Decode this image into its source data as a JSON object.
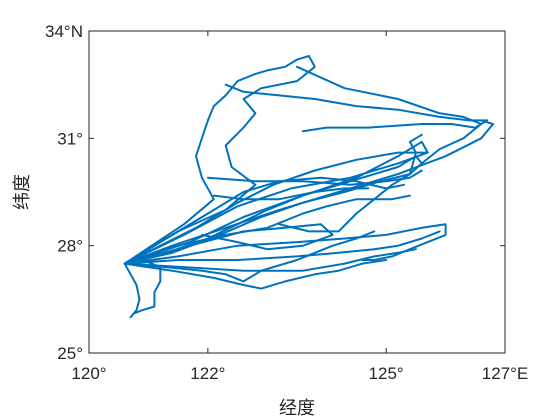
{
  "chart_data": {
    "type": "line",
    "xlabel": "经度",
    "ylabel": "纬度",
    "xlim": [
      120,
      127
    ],
    "ylim": [
      25,
      34
    ],
    "x_ticks": [
      {
        "value": 120,
        "label": "120°"
      },
      {
        "value": 122,
        "label": "122°"
      },
      {
        "value": 125,
        "label": "125°"
      },
      {
        "value": 127,
        "label": "127°E"
      }
    ],
    "y_ticks": [
      {
        "value": 25,
        "label": "25°"
      },
      {
        "value": 28,
        "label": "28°"
      },
      {
        "value": 31,
        "label": "31°"
      },
      {
        "value": 34,
        "label": "34°N"
      }
    ],
    "grid": false,
    "color": "#0072BD",
    "series": [
      {
        "points": [
          [
            120.7,
            26.0
          ],
          [
            120.8,
            26.2
          ],
          [
            120.85,
            26.5
          ],
          [
            120.8,
            26.9
          ],
          [
            120.7,
            27.2
          ],
          [
            120.6,
            27.5
          ],
          [
            120.9,
            27.6
          ],
          [
            121.2,
            27.4
          ],
          [
            121.2,
            27.0
          ],
          [
            121.1,
            26.7
          ],
          [
            121.1,
            26.3
          ],
          [
            120.9,
            26.2
          ],
          [
            120.75,
            26.1
          ]
        ]
      },
      {
        "points": [
          [
            120.6,
            27.5
          ],
          [
            121.3,
            27.8
          ],
          [
            122.0,
            28.2
          ],
          [
            122.5,
            28.6
          ],
          [
            123.0,
            29.0
          ],
          [
            123.6,
            29.4
          ],
          [
            124.2,
            29.7
          ],
          [
            124.8,
            30.0
          ],
          [
            125.2,
            30.2
          ],
          [
            125.5,
            30.5
          ],
          [
            125.6,
            30.3
          ],
          [
            125.4,
            30.0
          ],
          [
            124.9,
            29.8
          ],
          [
            124.3,
            29.5
          ],
          [
            123.6,
            29.2
          ],
          [
            122.9,
            28.8
          ],
          [
            122.2,
            28.3
          ],
          [
            121.4,
            27.8
          ],
          [
            120.6,
            27.5
          ]
        ]
      },
      {
        "points": [
          [
            120.6,
            27.5
          ],
          [
            121.6,
            28.3
          ],
          [
            122.5,
            29.1
          ],
          [
            123.4,
            29.6
          ],
          [
            124.4,
            29.9
          ],
          [
            125.2,
            30.3
          ],
          [
            125.7,
            30.6
          ],
          [
            125.6,
            30.9
          ],
          [
            125.2,
            30.5
          ],
          [
            124.5,
            29.9
          ],
          [
            123.6,
            29.4
          ],
          [
            122.6,
            28.8
          ],
          [
            121.7,
            28.1
          ],
          [
            120.6,
            27.5
          ]
        ]
      },
      {
        "points": [
          [
            120.6,
            27.5
          ],
          [
            121.5,
            28.4
          ],
          [
            122.3,
            29.0
          ],
          [
            122.8,
            29.7
          ],
          [
            122.4,
            30.2
          ],
          [
            122.3,
            30.8
          ],
          [
            122.6,
            31.3
          ],
          [
            122.8,
            31.7
          ],
          [
            122.6,
            32.1
          ],
          [
            122.9,
            32.4
          ],
          [
            123.5,
            32.6
          ],
          [
            123.8,
            33.0
          ],
          [
            123.7,
            33.3
          ],
          [
            123.5,
            33.2
          ],
          [
            123.3,
            33.0
          ],
          [
            123.0,
            32.9
          ],
          [
            122.8,
            32.8
          ],
          [
            122.5,
            32.6
          ],
          [
            122.3,
            32.2
          ],
          [
            122.1,
            31.9
          ],
          [
            122.0,
            31.5
          ],
          [
            121.9,
            31.0
          ],
          [
            121.8,
            30.5
          ],
          [
            121.9,
            29.9
          ],
          [
            122.1,
            29.3
          ],
          [
            121.6,
            28.6
          ],
          [
            120.6,
            27.5
          ]
        ]
      },
      {
        "points": [
          [
            122.3,
            32.5
          ],
          [
            122.6,
            32.3
          ],
          [
            123.2,
            32.2
          ],
          [
            123.8,
            32.1
          ],
          [
            124.5,
            31.9
          ],
          [
            125.2,
            31.8
          ],
          [
            125.9,
            31.6
          ],
          [
            126.4,
            31.5
          ],
          [
            126.7,
            31.5
          ],
          [
            126.5,
            31.3
          ],
          [
            126.1,
            31.4
          ],
          [
            125.6,
            31.4
          ],
          [
            124.7,
            31.3
          ],
          [
            124.0,
            31.3
          ],
          [
            123.6,
            31.2
          ]
        ]
      },
      {
        "points": [
          [
            123.5,
            33.0
          ],
          [
            124.3,
            32.4
          ],
          [
            125.2,
            32.1
          ],
          [
            125.9,
            31.7
          ],
          [
            126.3,
            31.6
          ],
          [
            126.6,
            31.4
          ],
          [
            126.3,
            31.0
          ],
          [
            125.9,
            30.7
          ],
          [
            125.6,
            30.3
          ]
        ]
      },
      {
        "points": [
          [
            120.6,
            27.5
          ],
          [
            121.4,
            28.0
          ],
          [
            122.3,
            28.5
          ],
          [
            123.2,
            29.0
          ],
          [
            124.2,
            29.5
          ],
          [
            125.2,
            30.0
          ],
          [
            126.0,
            30.5
          ],
          [
            126.6,
            31.0
          ],
          [
            126.8,
            31.4
          ],
          [
            126.6,
            31.5
          ]
        ]
      },
      {
        "points": [
          [
            122.0,
            29.9
          ],
          [
            122.8,
            29.8
          ],
          [
            123.6,
            29.8
          ],
          [
            124.4,
            29.7
          ],
          [
            125.0,
            29.8
          ],
          [
            125.4,
            29.9
          ],
          [
            125.6,
            30.1
          ]
        ]
      },
      {
        "points": [
          [
            120.6,
            27.5
          ],
          [
            121.5,
            27.7
          ],
          [
            122.5,
            28.0
          ],
          [
            123.5,
            28.1
          ],
          [
            124.3,
            28.2
          ],
          [
            125.0,
            28.3
          ],
          [
            125.6,
            28.5
          ],
          [
            126.0,
            28.6
          ],
          [
            126.0,
            28.3
          ],
          [
            125.7,
            28.1
          ],
          [
            125.4,
            27.9
          ],
          [
            125.1,
            27.7
          ],
          [
            124.8,
            27.6
          ],
          [
            124.6,
            27.6
          ]
        ]
      },
      {
        "points": [
          [
            120.6,
            27.5
          ],
          [
            121.5,
            27.6
          ],
          [
            122.5,
            27.6
          ],
          [
            123.5,
            27.7
          ],
          [
            124.2,
            27.8
          ],
          [
            124.8,
            27.9
          ],
          [
            125.2,
            28.0
          ],
          [
            125.6,
            28.2
          ],
          [
            125.9,
            28.4
          ]
        ]
      },
      {
        "points": [
          [
            120.6,
            27.5
          ],
          [
            121.6,
            27.4
          ],
          [
            122.6,
            27.3
          ],
          [
            123.6,
            27.3
          ],
          [
            124.3,
            27.5
          ],
          [
            124.8,
            27.7
          ],
          [
            125.2,
            27.8
          ],
          [
            125.5,
            27.9
          ]
        ]
      },
      {
        "points": [
          [
            120.6,
            27.5
          ],
          [
            121.4,
            27.3
          ],
          [
            122.1,
            27.1
          ],
          [
            122.6,
            26.9
          ],
          [
            122.9,
            26.8
          ],
          [
            123.3,
            27.0
          ],
          [
            123.8,
            27.2
          ],
          [
            124.2,
            27.3
          ],
          [
            124.6,
            27.5
          ],
          [
            125.0,
            27.6
          ]
        ]
      },
      {
        "points": [
          [
            120.6,
            27.5
          ],
          [
            121.3,
            27.4
          ],
          [
            121.9,
            27.3
          ],
          [
            122.3,
            27.2
          ],
          [
            122.6,
            27.0
          ],
          [
            122.9,
            27.3
          ],
          [
            123.5,
            27.6
          ],
          [
            124.1,
            28.0
          ],
          [
            124.5,
            28.2
          ],
          [
            124.8,
            28.4
          ]
        ]
      },
      {
        "points": [
          [
            120.6,
            27.5
          ],
          [
            121.5,
            28.0
          ],
          [
            122.3,
            28.3
          ],
          [
            123.0,
            28.5
          ],
          [
            123.6,
            28.9
          ],
          [
            124.0,
            29.1
          ],
          [
            124.5,
            29.3
          ],
          [
            125.1,
            29.3
          ],
          [
            125.4,
            29.4
          ]
        ]
      },
      {
        "points": [
          [
            120.6,
            27.5
          ],
          [
            121.7,
            28.0
          ],
          [
            122.6,
            28.4
          ],
          [
            123.3,
            28.5
          ],
          [
            123.9,
            28.6
          ],
          [
            124.1,
            28.3
          ],
          [
            123.6,
            28.0
          ],
          [
            123.0,
            27.9
          ],
          [
            122.5,
            28.1
          ],
          [
            121.9,
            28.3
          ]
        ]
      },
      {
        "points": [
          [
            120.6,
            27.5
          ],
          [
            121.8,
            28.5
          ],
          [
            122.5,
            29.2
          ],
          [
            123.1,
            29.7
          ],
          [
            123.8,
            30.1
          ],
          [
            124.5,
            30.4
          ],
          [
            125.2,
            30.6
          ],
          [
            125.7,
            30.6
          ]
        ]
      },
      {
        "points": [
          [
            120.6,
            27.5
          ],
          [
            121.3,
            28.2
          ],
          [
            122.0,
            28.9
          ],
          [
            122.6,
            29.5
          ],
          [
            123.2,
            29.8
          ],
          [
            123.9,
            29.9
          ],
          [
            124.5,
            29.8
          ],
          [
            125.0,
            29.6
          ],
          [
            125.3,
            29.7
          ]
        ]
      },
      {
        "points": [
          [
            122.1,
            29.4
          ],
          [
            122.6,
            29.3
          ],
          [
            123.2,
            29.3
          ],
          [
            123.8,
            29.5
          ],
          [
            124.3,
            29.6
          ],
          [
            124.7,
            29.6
          ]
        ]
      },
      {
        "points": [
          [
            123.2,
            28.6
          ],
          [
            123.7,
            28.4
          ],
          [
            124.2,
            28.4
          ],
          [
            124.5,
            28.9
          ],
          [
            124.8,
            29.3
          ],
          [
            125.1,
            29.7
          ],
          [
            125.4,
            30.0
          ],
          [
            125.5,
            30.6
          ],
          [
            125.4,
            30.9
          ],
          [
            125.6,
            31.1
          ]
        ]
      }
    ]
  }
}
